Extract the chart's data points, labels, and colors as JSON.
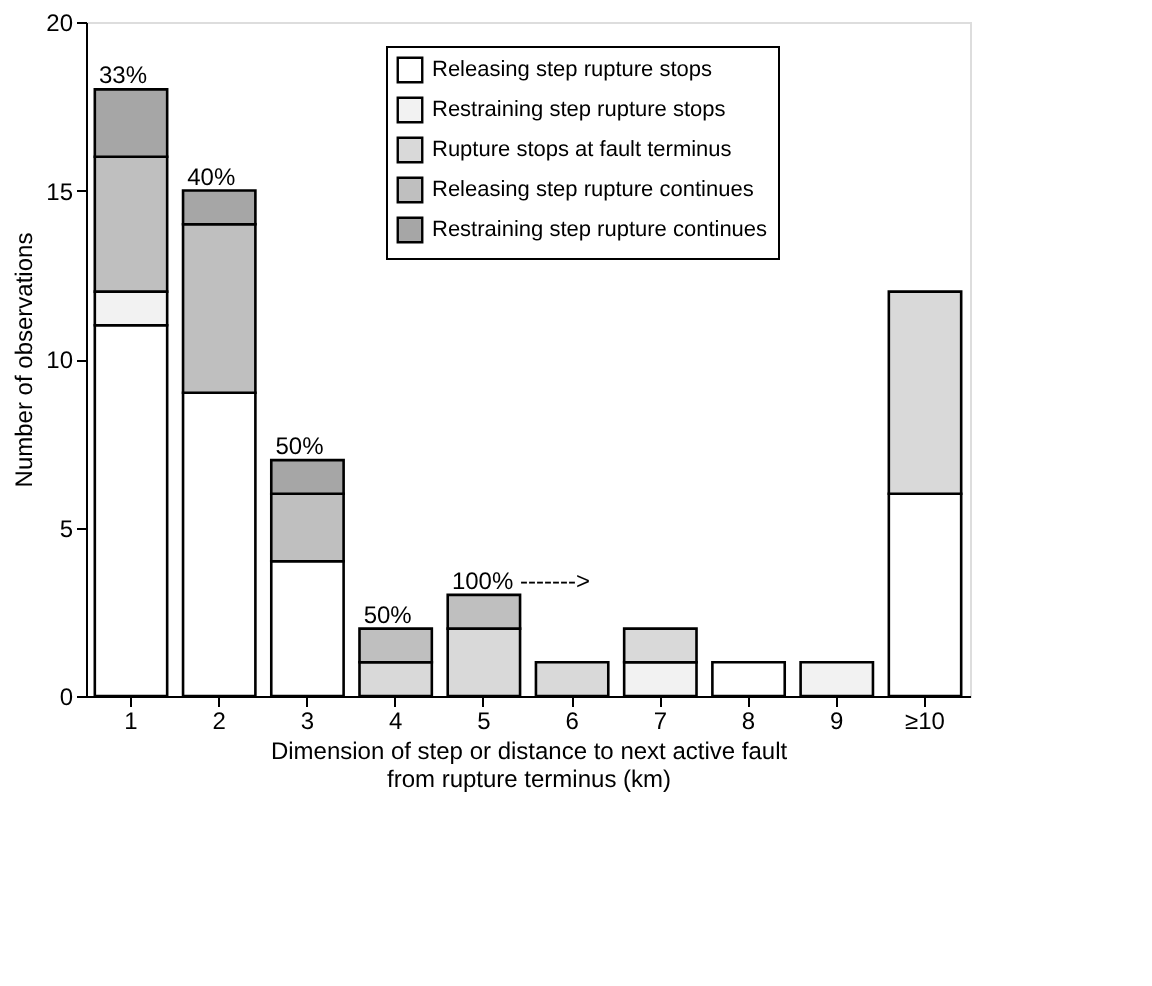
{
  "chart_data": {
    "type": "bar",
    "stacked": true,
    "categories": [
      "1",
      "2",
      "3",
      "4",
      "5",
      "6",
      "7",
      "8",
      "9",
      "≥10"
    ],
    "xlabel": "Dimension of step or distance to next active fault\nfrom rupture terminus (km)",
    "ylabel": "Number of observations",
    "ylim": [
      0,
      20
    ],
    "yticks": [
      0,
      5,
      10,
      15,
      20
    ],
    "grid": false,
    "legend": "top right",
    "series": [
      {
        "name": "Releasing step rupture stops",
        "color": "#ffffff",
        "values": [
          11,
          9,
          4,
          0,
          0,
          0,
          0,
          1,
          0,
          6
        ]
      },
      {
        "name": "Restraining step rupture stops",
        "color": "#f2f2f2",
        "values": [
          1,
          0,
          0,
          0,
          0,
          0,
          1,
          0,
          1,
          0
        ]
      },
      {
        "name": "Rupture stops at fault terminus",
        "color": "#d9d9d9",
        "values": [
          0,
          0,
          0,
          1,
          2,
          1,
          1,
          0,
          0,
          6
        ]
      },
      {
        "name": "Releasing step rupture continues",
        "color": "#bfbfbf",
        "values": [
          4,
          5,
          2,
          1,
          1,
          0,
          0,
          0,
          0,
          0
        ]
      },
      {
        "name": "Restraining step rupture continues",
        "color": "#a6a6a6",
        "values": [
          2,
          1,
          1,
          0,
          0,
          0,
          0,
          0,
          0,
          0
        ]
      }
    ],
    "annotations": [
      {
        "text": "33%",
        "x": "1",
        "y": 18
      },
      {
        "text": "40%",
        "x": "2",
        "y": 15
      },
      {
        "text": "50%",
        "x": "3",
        "y": 7
      },
      {
        "text": "50%",
        "x": "4",
        "y": 2
      },
      {
        "text": "100% ------->",
        "x": "5",
        "y": 3
      }
    ]
  }
}
